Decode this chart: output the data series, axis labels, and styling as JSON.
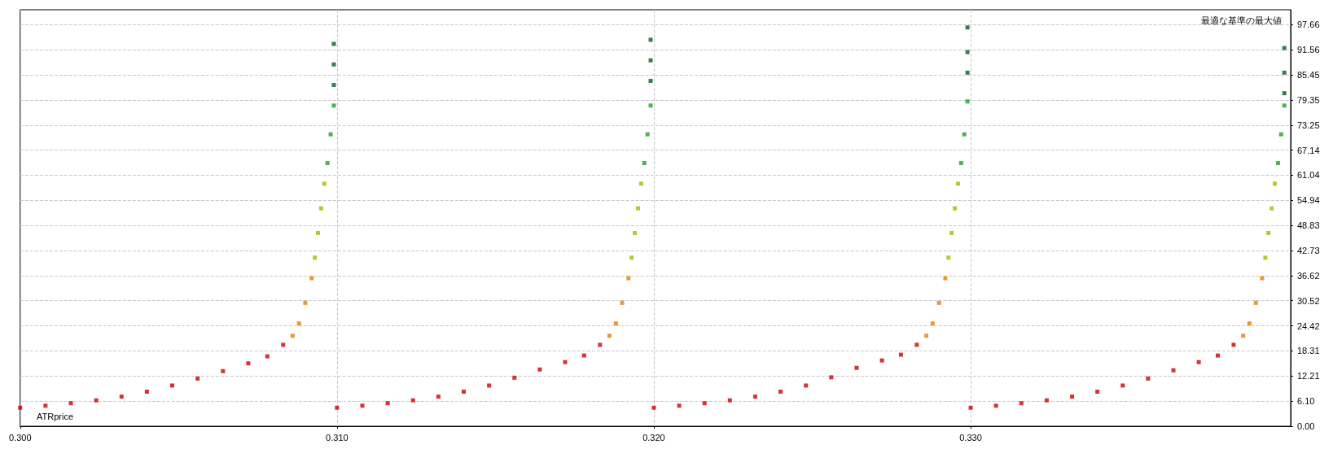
{
  "chart_data": {
    "type": "scatter",
    "title": "最適な基準の最大値",
    "xlabel": "ATRprice",
    "marker": "square",
    "grid": true,
    "xlim": [
      0.3,
      0.3401
    ],
    "ylim": [
      0,
      101.3
    ],
    "xticks": [
      {
        "value": 0.3,
        "label": "0.300"
      },
      {
        "value": 0.31,
        "label": "0.310"
      },
      {
        "value": 0.32,
        "label": "0.320"
      },
      {
        "value": 0.33,
        "label": "0.330"
      }
    ],
    "yticks": [
      {
        "value": 0,
        "label": "0.00"
      },
      {
        "value": 6.1,
        "label": "6.10"
      },
      12.21,
      18.31,
      24.42,
      30.52,
      36.62,
      42.73,
      48.83,
      54.94,
      61.04,
      67.14,
      73.25,
      79.35,
      85.45,
      91.56,
      97.66
    ],
    "x": [
      0.3,
      0.3008,
      0.3016,
      0.3024,
      0.3032,
      0.304,
      0.3048,
      0.3056,
      0.3064,
      0.3072,
      0.3078,
      0.3083,
      0.3086,
      0.3088,
      0.309,
      0.3092,
      0.3093,
      0.3094,
      0.3095,
      0.3096,
      0.3097,
      0.3098,
      0.3099,
      0.3099,
      0.3099,
      0.3099,
      0.31,
      0.3108,
      0.3116,
      0.3124,
      0.3132,
      0.314,
      0.3148,
      0.3156,
      0.3164,
      0.3172,
      0.3178,
      0.3183,
      0.3186,
      0.3188,
      0.319,
      0.3192,
      0.3193,
      0.3194,
      0.3195,
      0.3196,
      0.3197,
      0.3198,
      0.3199,
      0.3199,
      0.3199,
      0.3199,
      0.32,
      0.3208,
      0.3216,
      0.3224,
      0.3232,
      0.324,
      0.3248,
      0.3256,
      0.3264,
      0.3272,
      0.3278,
      0.3283,
      0.3286,
      0.3288,
      0.329,
      0.3292,
      0.3293,
      0.3294,
      0.3295,
      0.3296,
      0.3297,
      0.3298,
      0.3299,
      0.3299,
      0.3299,
      0.3299,
      0.33,
      0.3308,
      0.3316,
      0.3324,
      0.3332,
      0.334,
      0.3348,
      0.3356,
      0.3364,
      0.3372,
      0.3378,
      0.3383,
      0.3386,
      0.3388,
      0.339,
      0.3392,
      0.3393,
      0.3394,
      0.3395,
      0.3396,
      0.3397,
      0.3398,
      0.3399,
      0.3399,
      0.3399,
      0.3399
    ],
    "values": [
      4.5,
      5,
      5.6,
      6.3,
      7.2,
      8.4,
      9.9,
      11.6,
      13.4,
      15.3,
      17,
      19.8,
      22,
      25,
      30,
      36,
      41,
      47,
      53,
      59,
      64,
      71,
      78,
      83,
      88,
      93,
      4.5,
      5,
      5.6,
      6.3,
      7.2,
      8.4,
      9.9,
      11.8,
      13.8,
      15.6,
      17.2,
      19.8,
      22,
      25,
      30,
      36,
      41,
      47,
      53,
      59,
      64,
      71,
      78,
      84,
      89,
      94,
      4.5,
      5,
      5.6,
      6.3,
      7.2,
      8.4,
      9.9,
      11.9,
      14.2,
      16,
      17.4,
      19.8,
      22,
      25,
      30,
      36,
      41,
      47,
      53,
      59,
      64,
      71,
      79,
      86,
      91,
      97,
      4.5,
      5,
      5.6,
      6.3,
      7.2,
      8.4,
      9.9,
      11.6,
      13.6,
      15.6,
      17.2,
      19.8,
      22,
      25,
      30,
      36,
      41,
      47,
      53,
      59,
      64,
      71,
      78,
      81,
      86,
      92
    ],
    "colors": [
      "#cc0000",
      "#cc0000",
      "#cc0000",
      "#cc0000",
      "#cc0000",
      "#cc0000",
      "#cc0000",
      "#cc0000",
      "#cc0000",
      "#cc0000",
      "#cc0000",
      "#cc0000",
      "#e68000",
      "#e68000",
      "#e68000",
      "#e68000",
      "#a8b800",
      "#a8b800",
      "#a8b800",
      "#a8b800",
      "#22a022",
      "#22a022",
      "#22a022",
      "#006020",
      "#006020",
      "#006020",
      "#cc0000",
      "#cc0000",
      "#cc0000",
      "#cc0000",
      "#cc0000",
      "#cc0000",
      "#cc0000",
      "#cc0000",
      "#cc0000",
      "#cc0000",
      "#cc0000",
      "#cc0000",
      "#e68000",
      "#e68000",
      "#e68000",
      "#e68000",
      "#a8b800",
      "#a8b800",
      "#a8b800",
      "#a8b800",
      "#22a022",
      "#22a022",
      "#22a022",
      "#006020",
      "#006020",
      "#006020",
      "#cc0000",
      "#cc0000",
      "#cc0000",
      "#cc0000",
      "#cc0000",
      "#cc0000",
      "#cc0000",
      "#cc0000",
      "#cc0000",
      "#cc0000",
      "#cc0000",
      "#cc0000",
      "#e68000",
      "#e68000",
      "#e68000",
      "#e68000",
      "#a8b800",
      "#a8b800",
      "#a8b800",
      "#a8b800",
      "#22a022",
      "#22a022",
      "#22a022",
      "#006020",
      "#006020",
      "#006020",
      "#cc0000",
      "#cc0000",
      "#cc0000",
      "#cc0000",
      "#cc0000",
      "#cc0000",
      "#cc0000",
      "#cc0000",
      "#cc0000",
      "#cc0000",
      "#cc0000",
      "#cc0000",
      "#e68000",
      "#e68000",
      "#e68000",
      "#e68000",
      "#a8b800",
      "#a8b800",
      "#a8b800",
      "#a8b800",
      "#22a022",
      "#22a022",
      "#22a022",
      "#006020",
      "#006020",
      "#006020"
    ]
  }
}
